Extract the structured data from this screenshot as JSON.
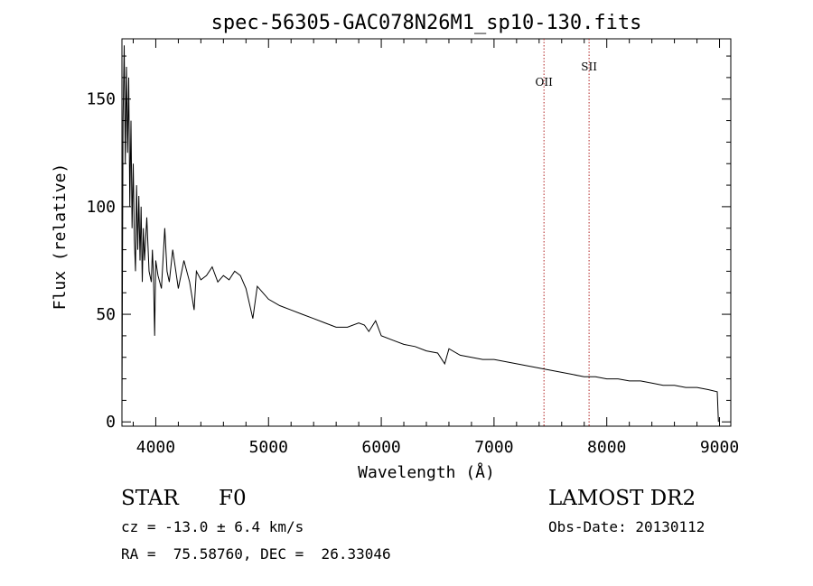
{
  "chart_data": {
    "type": "line",
    "title": "spec-56305-GAC078N26M1_sp10-130.fits",
    "xlabel": "Wavelength (Å)",
    "ylabel": "Flux (relative)",
    "xlim": [
      3700,
      9100
    ],
    "ylim": [
      -2,
      178
    ],
    "xticks": [
      4000,
      5000,
      6000,
      7000,
      8000,
      9000
    ],
    "yticks": [
      0,
      50,
      100,
      150
    ],
    "grid": false,
    "series": [
      {
        "name": "spectrum",
        "color": "#000000",
        "x": [
          3700,
          3710,
          3720,
          3730,
          3740,
          3750,
          3760,
          3770,
          3780,
          3790,
          3800,
          3810,
          3820,
          3830,
          3840,
          3850,
          3860,
          3870,
          3880,
          3890,
          3900,
          3920,
          3940,
          3960,
          3970,
          3980,
          3990,
          4000,
          4020,
          4050,
          4080,
          4100,
          4120,
          4150,
          4200,
          4250,
          4300,
          4340,
          4360,
          4400,
          4450,
          4500,
          4550,
          4600,
          4650,
          4700,
          4750,
          4800,
          4861,
          4900,
          4950,
          5000,
          5100,
          5200,
          5300,
          5400,
          5500,
          5600,
          5700,
          5800,
          5850,
          5890,
          5950,
          6000,
          6100,
          6200,
          6300,
          6400,
          6500,
          6563,
          6600,
          6700,
          6800,
          6900,
          7000,
          7100,
          7200,
          7300,
          7400,
          7500,
          7600,
          7700,
          7800,
          7900,
          8000,
          8100,
          8200,
          8300,
          8400,
          8500,
          8600,
          8700,
          8800,
          8900,
          8980,
          8990
        ],
        "values": [
          5,
          140,
          175,
          120,
          165,
          125,
          160,
          100,
          140,
          90,
          120,
          85,
          70,
          110,
          80,
          105,
          75,
          100,
          65,
          90,
          75,
          95,
          70,
          65,
          80,
          68,
          40,
          75,
          68,
          62,
          90,
          70,
          65,
          80,
          62,
          75,
          65,
          52,
          70,
          66,
          68,
          72,
          65,
          68,
          66,
          70,
          68,
          62,
          48,
          63,
          60,
          57,
          54,
          52,
          50,
          48,
          46,
          44,
          44,
          46,
          45,
          42,
          47,
          40,
          38,
          36,
          35,
          33,
          32,
          27,
          34,
          31,
          30,
          29,
          29,
          28,
          27,
          26,
          25,
          24,
          23,
          22,
          21,
          21,
          20,
          20,
          19,
          19,
          18,
          17,
          17,
          16,
          16,
          15,
          14,
          0
        ]
      }
    ],
    "annotations": [
      {
        "label": "OII",
        "x": 7443
      },
      {
        "label": "SII",
        "x": 7843
      }
    ],
    "line_color": "#b22222"
  },
  "info": {
    "object_class": "STAR",
    "subclass": "F0",
    "survey": "LAMOST DR2",
    "cz": "cz = -13.0 ± 6.4 km/s",
    "obs_date": "Obs-Date: 20130112",
    "coords": "RA =  75.58760, DEC =  26.33046"
  }
}
